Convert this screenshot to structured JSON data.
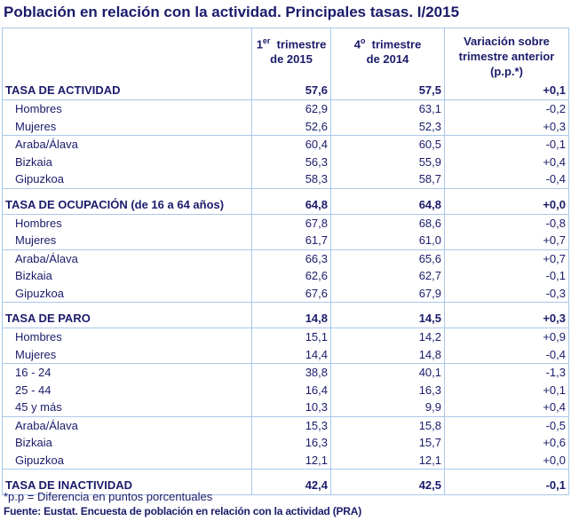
{
  "title": "Población en relación con la actividad. Principales tasas. I/2015",
  "headers": {
    "col2_num": "1",
    "col2_sup": "er",
    "col2_a": "trimestre",
    "col2_b": "de 2015",
    "col3_num": "4",
    "col3_sup": "o",
    "col3_a": "trimestre",
    "col3_b": "de 2014",
    "col4_a": "Variación sobre",
    "col4_b": "trimestre anterior",
    "col4_c": "(p.p.*)"
  },
  "rows": [
    {
      "label": "TASA DE ACTIVIDAD",
      "v1": "57,6",
      "v2": "57,5",
      "v3": "+0,1",
      "type": "tasa"
    },
    {
      "label": "Hombres",
      "v1": "62,9",
      "v2": "63,1",
      "v3": "-0,2"
    },
    {
      "label": "Mujeres",
      "v1": "52,6",
      "v2": "52,3",
      "v3": "+0,3",
      "sep": true
    },
    {
      "label": "Araba/Álava",
      "v1": "60,4",
      "v2": "60,5",
      "v3": "-0,1"
    },
    {
      "label": "Bizkaia",
      "v1": "56,3",
      "v2": "55,9",
      "v3": "+0,4"
    },
    {
      "label": "Gipuzkoa",
      "v1": "58,3",
      "v2": "58,7",
      "v3": "-0,4",
      "sep": true
    },
    {
      "label": "TASA DE OCUPACIÓN (de 16 a 64 años)",
      "v1": "64,8",
      "v2": "64,8",
      "v3": "+0,0",
      "type": "tasa"
    },
    {
      "label": "Hombres",
      "v1": "67,8",
      "v2": "68,6",
      "v3": "-0,8"
    },
    {
      "label": "Mujeres",
      "v1": "61,7",
      "v2": "61,0",
      "v3": "+0,7",
      "sep": true
    },
    {
      "label": "Araba/Álava",
      "v1": "66,3",
      "v2": "65,6",
      "v3": "+0,7"
    },
    {
      "label": "Bizkaia",
      "v1": "62,6",
      "v2": "62,7",
      "v3": "-0,1"
    },
    {
      "label": "Gipuzkoa",
      "v1": "67,6",
      "v2": "67,9",
      "v3": "-0,3",
      "sep": true
    },
    {
      "label": "TASA DE PARO",
      "v1": "14,8",
      "v2": "14,5",
      "v3": "+0,3",
      "type": "tasa"
    },
    {
      "label": "Hombres",
      "v1": "15,1",
      "v2": "14,2",
      "v3": "+0,9"
    },
    {
      "label": "Mujeres",
      "v1": "14,4",
      "v2": "14,8",
      "v3": "-0,4",
      "sep": true
    },
    {
      "label": "16 - 24",
      "v1": "38,8",
      "v2": "40,1",
      "v3": "-1,3"
    },
    {
      "label": "25 - 44",
      "v1": "16,4",
      "v2": "16,3",
      "v3": "+0,1"
    },
    {
      "label": "45  y más",
      "v1": "10,3",
      "v2": "9,9",
      "v3": "+0,4",
      "sep": true
    },
    {
      "label": "Araba/Álava",
      "v1": "15,3",
      "v2": "15,8",
      "v3": "-0,5"
    },
    {
      "label": "Bizkaia",
      "v1": "16,3",
      "v2": "15,7",
      "v3": "+0,6"
    },
    {
      "label": "Gipuzkoa",
      "v1": "12,1",
      "v2": "12,1",
      "v3": "+0,0",
      "sep": true
    },
    {
      "label": "TASA DE INACTIVIDAD",
      "v1": "42,4",
      "v2": "42,5",
      "v3": "-0,1",
      "type": "tasa"
    }
  ],
  "footnote": "*p.p = Diferencia en puntos porcentuales",
  "source": "Fuente: Eustat. Encuesta de población en relación con la actividad (PRA)",
  "colors": {
    "text": "#1b1b6b",
    "border": "#a9c8ea"
  }
}
